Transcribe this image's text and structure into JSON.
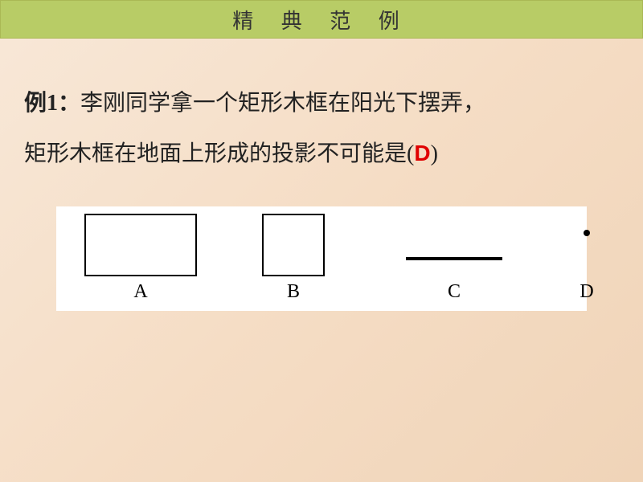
{
  "header": {
    "title": "精 典 范 例"
  },
  "problem": {
    "label": "例1：",
    "line1": "李刚同学拿一个矩形木框在阳光下摆弄，",
    "line2": "矩形木框在地面上形成的投影不可能是(",
    "answer": "D",
    "line2_close": ")"
  },
  "options": {
    "a": {
      "label": "A"
    },
    "b": {
      "label": "B"
    },
    "c": {
      "label": "C"
    },
    "d": {
      "label": "D"
    }
  },
  "styling": {
    "header_bg": "#b8cc66",
    "header_fontsize": 26,
    "body_gradient_start": "#f8e8d8",
    "body_gradient_end": "#f0d4b8",
    "text_fontsize": 28,
    "text_color": "#222222",
    "answer_color": "#e00000",
    "figure_bg": "#ffffff",
    "shape_border": "#000000",
    "rect_a_w": 140,
    "rect_a_h": 78,
    "rect_b_w": 78,
    "rect_b_h": 78,
    "line_c_w": 120,
    "line_c_h": 4,
    "dot_d_d": 8
  }
}
